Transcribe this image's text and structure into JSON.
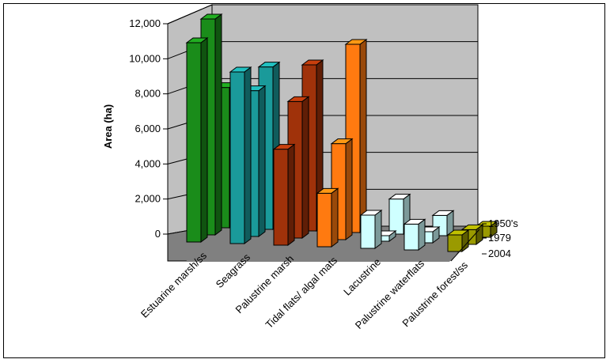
{
  "chart_data": {
    "type": "bar",
    "subtype": "3d-clustered-depth",
    "title": "",
    "xlabel": "",
    "ylabel": "Area (ha)",
    "ylim": [
      0,
      12000
    ],
    "yticks": [
      "0",
      "2,000",
      "4,000",
      "6,000",
      "8,000",
      "10,000",
      "12,000"
    ],
    "grid": true,
    "categories": [
      "Estuarine marsh/ss",
      "Seagrass",
      "Palustrine marsh",
      "Tidal flats/ algal mats",
      "Lacustrine",
      "Palustrine waterflats",
      "Palustrine forest/ss"
    ],
    "category_colors": [
      "#1a8c1a",
      "#1a9a9a",
      "#a0320a",
      "#ff7a10",
      "#cfffff",
      "#cfffff",
      "#9a9a00"
    ],
    "series": [
      {
        "name": "2004",
        "values": [
          10800,
          9300,
          5200,
          2900,
          1800,
          1400,
          900
        ]
      },
      {
        "name": "1979",
        "values": [
          11700,
          7900,
          7400,
          5200,
          300,
          600,
          800
        ]
      },
      {
        "name": "1950's",
        "values": [
          7600,
          8800,
          9000,
          10200,
          1900,
          1100,
          600
        ]
      }
    ]
  }
}
